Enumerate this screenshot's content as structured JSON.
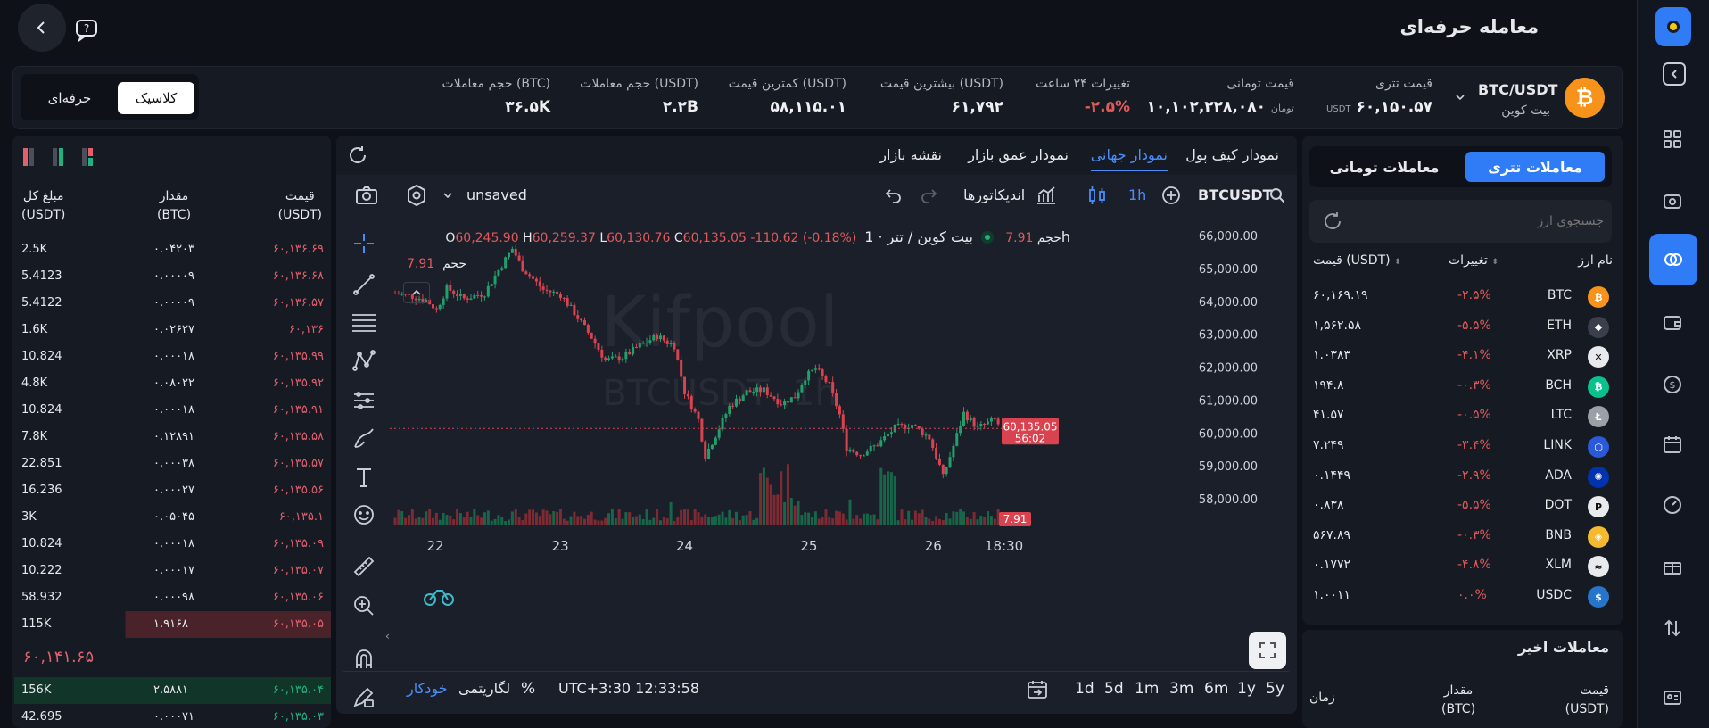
{
  "header": {
    "title": "معامله حرفه‌ای",
    "back_icon": "chevron-left-icon",
    "help_icon": "help-chat-icon"
  },
  "mode": {
    "classic": "کلاسیک",
    "pro": "حرفه‌ای"
  },
  "market": {
    "pair": "BTC/USDT",
    "name": "بیت کوین",
    "stats": [
      {
        "label": "قیمت تتری",
        "value": "۶۰,۱۵۰.۵۷",
        "unit": "USDT"
      },
      {
        "label": "قیمت تومانی",
        "value": "۱۰,۱۰۲,۲۲۸,۰۸۰",
        "unit": "تومان"
      },
      {
        "label": "تغییرات ۲۴ ساعت",
        "value": "-۲.۵%"
      },
      {
        "label": "بیشترین قیمت (USDT)",
        "value": "۶۱,۷۹۲"
      },
      {
        "label": "کمترین قیمت (USDT)",
        "value": "۵۸,۱۱۵.۰۱"
      },
      {
        "label": "حجم معاملات (USDT)",
        "value": "۲.۲B"
      },
      {
        "label": "حجم معاملات (BTC)",
        "value": "۳۶.۵K"
      }
    ]
  },
  "orderbook": {
    "headers": {
      "price": "قیمت",
      "price_unit": "(USDT)",
      "amount": "مقدار",
      "amount_unit": "(BTC)",
      "total": "مبلغ کل",
      "total_unit": "(USDT)"
    },
    "asks": [
      {
        "price": "۶۰,۱۳۶.۶۹",
        "amount": "۰.۰۴۲۰۳",
        "total": "2.5K"
      },
      {
        "price": "۶۰,۱۳۶.۶۸",
        "amount": "۰.۰۰۰۰۹",
        "total": "5.4123"
      },
      {
        "price": "۶۰,۱۳۶.۵۷",
        "amount": "۰.۰۰۰۰۹",
        "total": "5.4122"
      },
      {
        "price": "۶۰,۱۳۶",
        "amount": "۰.۰۲۶۲۷",
        "total": "1.6K"
      },
      {
        "price": "۶۰,۱۳۵.۹۹",
        "amount": "۰.۰۰۰۱۸",
        "total": "10.824"
      },
      {
        "price": "۶۰,۱۳۵.۹۲",
        "amount": "۰.۰۸۰۲۲",
        "total": "4.8K"
      },
      {
        "price": "۶۰,۱۳۵.۹۱",
        "amount": "۰.۰۰۰۱۸",
        "total": "10.824"
      },
      {
        "price": "۶۰,۱۳۵.۵۸",
        "amount": "۰.۱۲۸۹۱",
        "total": "7.8K"
      },
      {
        "price": "۶۰,۱۳۵.۵۷",
        "amount": "۰.۰۰۰۳۸",
        "total": "22.851"
      },
      {
        "price": "۶۰,۱۳۵.۵۶",
        "amount": "۰.۰۰۰۲۷",
        "total": "16.236"
      },
      {
        "price": "۶۰,۱۳۵.۱",
        "amount": "۰.۰۵۰۴۵",
        "total": "3K"
      },
      {
        "price": "۶۰,۱۳۵.۰۹",
        "amount": "۰.۰۰۰۱۸",
        "total": "10.824"
      },
      {
        "price": "۶۰,۱۳۵.۰۷",
        "amount": "۰.۰۰۰۱۷",
        "total": "10.222"
      },
      {
        "price": "۶۰,۱۳۵.۰۶",
        "amount": "۰.۰۰۰۹۸",
        "total": "58.932"
      },
      {
        "price": "۶۰,۱۳۵.۰۵",
        "amount": "۱.۹۱۶۸",
        "total": "115K"
      }
    ],
    "last_price": "۶۰,۱۴۱.۶۵",
    "bids": [
      {
        "price": "۶۰,۱۳۵.۰۴",
        "amount": "۲.۵۸۸۱",
        "total": "156K"
      },
      {
        "price": "۶۰,۱۳۵.۰۳",
        "amount": "۰.۰۰۰۷۱",
        "total": "42.695"
      }
    ]
  },
  "chart_tabs": [
    "نمودار کیف پول",
    "نمودار جهانی",
    "نمودار عمق بازار",
    "نقشه بازار"
  ],
  "toolbar": {
    "symbol": "BTCUSDT",
    "interval": "1h",
    "indicators": "اندیکاتورها",
    "layout": "unsaved"
  },
  "legend": {
    "title": "بیت کوین / تتر · 1h",
    "o_label": "O",
    "o": "60,245.90",
    "h_label": "H",
    "h": "60,259.37",
    "l_label": "L",
    "l": "60,130.76",
    "c_label": "C",
    "c": "60,135.05",
    "change": "-110.62 (-0.18%)",
    "vol_label": "حجم",
    "vol": "7.91",
    "vol_row_label": "حجم",
    "vol_row_value": "7.91"
  },
  "watermark": {
    "brand": "Kifpool",
    "sub": "BTCUSDT ,1h"
  },
  "chart_data": {
    "type": "candlestick",
    "title": "بیت کوین / تتر",
    "interval": "1h",
    "y_ticks": [
      58000,
      59000,
      60000,
      61000,
      62000,
      63000,
      64000,
      65000,
      66000
    ],
    "y_tick_labels": [
      "58,000.00",
      "59,000.00",
      "60,000.00",
      "61,000.00",
      "62,000.00",
      "63,000.00",
      "64,000.00",
      "65,000.00",
      "66,000.00"
    ],
    "ylim": [
      57350,
      66250
    ],
    "x_tick_labels": [
      "22",
      "23",
      "24",
      "25",
      "26",
      "18:30"
    ],
    "last_price": 60135.05,
    "last_price_label": "60,135.05",
    "countdown": "56:02",
    "volume_tag": "7.91",
    "close_path": [
      [
        0,
        64240
      ],
      [
        10,
        64150
      ],
      [
        18,
        64040
      ],
      [
        24,
        63750
      ],
      [
        30,
        64400
      ],
      [
        40,
        64080
      ],
      [
        52,
        64250
      ],
      [
        60,
        64950
      ],
      [
        68,
        65600
      ],
      [
        74,
        65000
      ],
      [
        86,
        64350
      ],
      [
        96,
        64200
      ],
      [
        104,
        63650
      ],
      [
        114,
        62900
      ],
      [
        122,
        62200
      ],
      [
        132,
        62300
      ],
      [
        142,
        62650
      ],
      [
        152,
        62950
      ],
      [
        158,
        62750
      ],
      [
        162,
        62650
      ],
      [
        168,
        61250
      ],
      [
        176,
        60400
      ],
      [
        180,
        59300
      ],
      [
        188,
        60150
      ],
      [
        194,
        60800
      ],
      [
        204,
        61250
      ],
      [
        214,
        61300
      ],
      [
        224,
        60900
      ],
      [
        232,
        61100
      ],
      [
        238,
        61700
      ],
      [
        244,
        61950
      ],
      [
        252,
        61450
      ],
      [
        258,
        60550
      ],
      [
        262,
        59550
      ],
      [
        270,
        59350
      ],
      [
        280,
        59650
      ],
      [
        290,
        60150
      ],
      [
        300,
        60250
      ],
      [
        310,
        59850
      ],
      [
        316,
        59000
      ],
      [
        318,
        58650
      ],
      [
        324,
        59600
      ],
      [
        330,
        60600
      ],
      [
        338,
        60150
      ],
      [
        348,
        60400
      ],
      [
        352,
        60135
      ]
    ],
    "x_tick_positions": [
      0.074,
      0.277,
      0.479,
      0.681,
      0.883,
      0.998
    ]
  },
  "bottom": {
    "timeframes": [
      "5y",
      "1y",
      "6m",
      "3m",
      "1m",
      "5d",
      "1d"
    ],
    "time": "12:33:58",
    "tz": "UTC+3:30",
    "pct": "%",
    "log": "لگاریتمی",
    "auto": "خودکار"
  },
  "markets": {
    "tabs": [
      "معاملات تتری",
      "معاملات تومانی"
    ],
    "search_placeholder": "جستجوی ارز",
    "headers": {
      "name": "نام ارز",
      "change": "تغییرات",
      "price": "قیمت (USDT)"
    },
    "rows": [
      {
        "symbol": "BTC",
        "change": "-۲.۵%",
        "price": "۶۰,۱۶۹.۱۹",
        "color": "#f7931a",
        "glyph": "₿"
      },
      {
        "symbol": "ETH",
        "change": "-۵.۵%",
        "price": "۱,۵۶۲.۵۸",
        "color": "#3a3f4b",
        "glyph": "◆"
      },
      {
        "symbol": "XRP",
        "change": "-۴.۱%",
        "price": "۱.۰۳۸۳",
        "color": "#e8eaee",
        "glyph": "✕"
      },
      {
        "symbol": "BCH",
        "change": "-۰.۳%",
        "price": "۱۹۴.۸",
        "color": "#0ac18e",
        "glyph": "₿"
      },
      {
        "symbol": "LTC",
        "change": "-۰.۵%",
        "price": "۴۱.۵۷",
        "color": "#9aa0a6",
        "glyph": "Ł"
      },
      {
        "symbol": "LINK",
        "change": "-۳.۴%",
        "price": "۷.۲۴۹",
        "color": "#2a5ada",
        "glyph": "⬡"
      },
      {
        "symbol": "ADA",
        "change": "-۲.۹%",
        "price": "۰.۱۴۴۹",
        "color": "#0033ad",
        "glyph": "✺"
      },
      {
        "symbol": "DOT",
        "change": "-۵.۵%",
        "price": "۰.۸۳۸",
        "color": "#e8eaee",
        "glyph": "P"
      },
      {
        "symbol": "BNB",
        "change": "-۰.۳%",
        "price": "۵۶۷.۸۹",
        "color": "#f3ba2f",
        "glyph": "◈"
      },
      {
        "symbol": "XLM",
        "change": "-۴.۸%",
        "price": "۰.۱۷۷۲",
        "color": "#e8eaee",
        "glyph": "≈"
      },
      {
        "symbol": "USDC",
        "change": "۰.۰%",
        "price": "۱.۰۰۱۱",
        "color": "#2775ca",
        "glyph": "$"
      }
    ]
  },
  "recent_trades": {
    "title": "معاملات اخیر",
    "price": "قیمت",
    "price_unit": "(USDT)",
    "amount": "مقدار",
    "amount_unit": "(BTC)",
    "time": "زمان"
  }
}
